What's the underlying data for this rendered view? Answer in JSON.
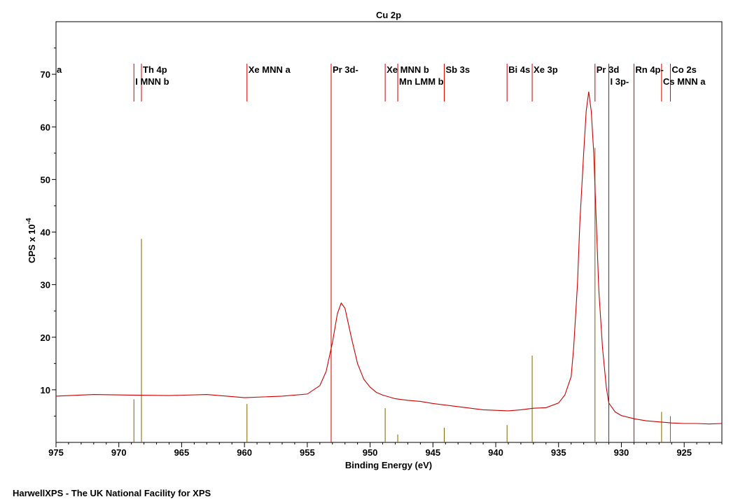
{
  "chart_data": {
    "type": "line",
    "title": "Cu 2p",
    "xlabel": "Binding Energy (eV)",
    "ylabel": "CPS x 10",
    "ylabel_exp": "-4",
    "xlim": [
      975,
      922
    ],
    "ylim": [
      0,
      80
    ],
    "x_ticks": [
      975,
      970,
      965,
      960,
      955,
      950,
      945,
      940,
      935,
      930,
      925
    ],
    "y_ticks": [
      10,
      20,
      30,
      40,
      50,
      60,
      70
    ],
    "grid": false,
    "colors": {
      "spectrum": "#cc0000",
      "reference_line": "#cc0000",
      "stick": "#806000"
    },
    "series": [
      {
        "values_note": "",
        "x": [
          975,
          972,
          969,
          966,
          963,
          960,
          957,
          955,
          954,
          953.5,
          953,
          952.6,
          952.3,
          952,
          951.5,
          951,
          950.5,
          950,
          949.5,
          949,
          948,
          947,
          946,
          945,
          944,
          943,
          942,
          941,
          940,
          939,
          938,
          937,
          936,
          935,
          934.5,
          934,
          933.8,
          933.5,
          933.3,
          933,
          932.8,
          932.6,
          932.4,
          932.2,
          932,
          931.8,
          931.5,
          931.2,
          931,
          930.5,
          930,
          929,
          928,
          927,
          926,
          925,
          924,
          923,
          922
        ],
        "y": [
          8.8,
          9.1,
          9.0,
          8.9,
          9.1,
          8.5,
          8.8,
          9.2,
          10.8,
          13.5,
          19,
          24.5,
          26.5,
          25.5,
          20,
          15,
          12,
          10.5,
          9.5,
          9.0,
          8.3,
          8.0,
          7.8,
          7.4,
          7.1,
          6.8,
          6.5,
          6.2,
          6.1,
          6.0,
          6.2,
          6.5,
          6.6,
          7.5,
          9.0,
          12.5,
          18,
          30,
          42,
          55,
          63,
          66.7,
          63,
          55,
          42,
          29,
          18,
          10.5,
          7.5,
          5.8,
          5.1,
          4.5,
          4.1,
          3.9,
          3.7,
          3.6,
          3.6,
          3.5,
          3.6
        ]
      }
    ],
    "reference_lines": [
      {
        "label": "Th 4p",
        "x": 968.2,
        "stick": 38.7
      },
      {
        "label": "I MNN b",
        "x": 968.8,
        "stick": 8.2
      },
      {
        "label": "Xe MNN a",
        "x": 959.8,
        "stick": 7.3
      },
      {
        "label": "Pr 3d-",
        "x": 953.1,
        "stick": null
      },
      {
        "label": "Xe MNN b",
        "x": 948.8,
        "stick": 6.5
      },
      {
        "label": "Mn LMM b",
        "x": 947.8,
        "stick": 1.5
      },
      {
        "label": "Sb 3s",
        "x": 944.1,
        "stick": 2.8
      },
      {
        "label": "Bi 4s",
        "x": 939.1,
        "stick": 3.3
      },
      {
        "label": "Xe 3p",
        "x": 937.1,
        "stick": 16.5
      },
      {
        "label": "Pr 3d",
        "x": 932.1,
        "stick": 56
      },
      {
        "label": "I 3p-",
        "x": 931.0,
        "stick": null
      },
      {
        "label": "Rn 4p-",
        "x": 929.0,
        "stick": null
      },
      {
        "label": "Co 2s",
        "x": 926.1,
        "stick": 5.0
      },
      {
        "label": "Cs MNN a",
        "x": 926.8,
        "stick": 5.8
      }
    ],
    "edge_label": "a"
  },
  "footer": "HarwellXPS - The UK National Facility for XPS"
}
